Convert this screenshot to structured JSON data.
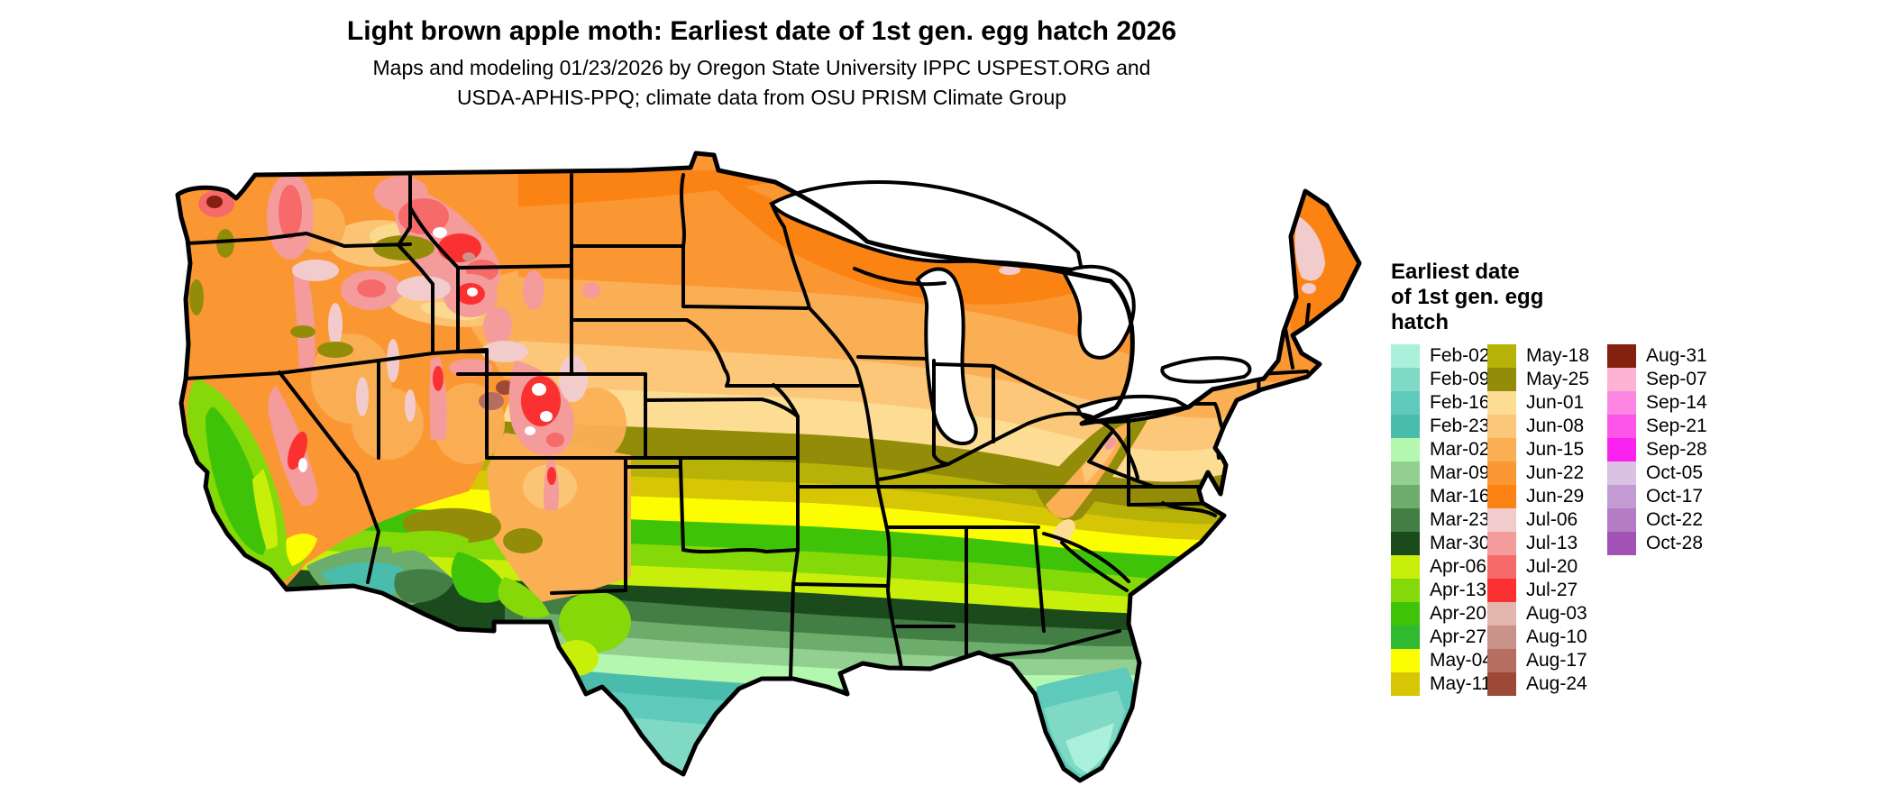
{
  "header": {
    "title": "Light brown apple moth: Earliest date of 1st gen. egg hatch 2026",
    "subtitle_line1": "Maps and modeling 01/23/2026 by Oregon State University IPPC USPEST.ORG and",
    "subtitle_line2": "USDA-APHIS-PPQ; climate data from OSU PRISM Climate Group"
  },
  "legend": {
    "title": "Earliest date\nof 1st gen. egg\nhatch",
    "columns": [
      [
        {
          "label": "Feb-02",
          "color": "#aaf0da"
        },
        {
          "label": "Feb-09",
          "color": "#7fd9c4"
        },
        {
          "label": "Feb-16",
          "color": "#5ecabb"
        },
        {
          "label": "Feb-23",
          "color": "#49bcab"
        },
        {
          "label": "Mar-02",
          "color": "#b4f7ae"
        },
        {
          "label": "Mar-09",
          "color": "#92cf91"
        },
        {
          "label": "Mar-16",
          "color": "#6dad6c"
        },
        {
          "label": "Mar-23",
          "color": "#437f45"
        },
        {
          "label": "Mar-30",
          "color": "#1b4a1d"
        },
        {
          "label": "Apr-06",
          "color": "#c8ef0a"
        },
        {
          "label": "Apr-13",
          "color": "#85d909"
        },
        {
          "label": "Apr-20",
          "color": "#3fc309"
        },
        {
          "label": "Apr-27",
          "color": "#2fba2f"
        },
        {
          "label": "May-04",
          "color": "#fdfd01"
        },
        {
          "label": "May-11",
          "color": "#d6c605"
        }
      ],
      [
        {
          "label": "May-18",
          "color": "#b7b207"
        },
        {
          "label": "May-25",
          "color": "#928c09"
        },
        {
          "label": "Jun-01",
          "color": "#fcdd93"
        },
        {
          "label": "Jun-08",
          "color": "#fcc778"
        },
        {
          "label": "Jun-15",
          "color": "#fbaf55"
        },
        {
          "label": "Jun-22",
          "color": "#fb9733"
        },
        {
          "label": "Jun-29",
          "color": "#fb8314"
        },
        {
          "label": "Jul-06",
          "color": "#f2cccc"
        },
        {
          "label": "Jul-13",
          "color": "#f49b9b"
        },
        {
          "label": "Jul-20",
          "color": "#f66a6a"
        },
        {
          "label": "Jul-27",
          "color": "#fb3131"
        },
        {
          "label": "Aug-03",
          "color": "#e2b5ad"
        },
        {
          "label": "Aug-10",
          "color": "#c9938a"
        },
        {
          "label": "Aug-17",
          "color": "#b56e60"
        },
        {
          "label": "Aug-24",
          "color": "#9c4a37"
        }
      ],
      [
        {
          "label": "Aug-31",
          "color": "#84200e"
        },
        {
          "label": "Sep-07",
          "color": "#feb3d5"
        },
        {
          "label": "Sep-14",
          "color": "#fd86e2"
        },
        {
          "label": "Sep-21",
          "color": "#fd55e8"
        },
        {
          "label": "Sep-28",
          "color": "#fb22f1"
        },
        {
          "label": "Oct-05",
          "color": "#d9c2e4"
        },
        {
          "label": "Oct-17",
          "color": "#c49ad3"
        },
        {
          "label": "Oct-22",
          "color": "#b47cc5"
        },
        {
          "label": "Oct-28",
          "color": "#a251b5"
        }
      ]
    ]
  },
  "colors": {
    "feb02": "#aaf0da",
    "feb09": "#7fd9c4",
    "feb16": "#5ecabb",
    "feb23": "#49bcab",
    "mar02": "#b4f7ae",
    "mar09": "#92cf91",
    "mar16": "#6dad6c",
    "mar23": "#437f45",
    "mar30": "#1b4a1d",
    "apr06": "#c8ef0a",
    "apr13": "#85d909",
    "apr20": "#3fc309",
    "apr27": "#2fba2f",
    "may04": "#fdfd01",
    "may11": "#d6c605",
    "may18": "#b7b207",
    "may25": "#928c09",
    "jun01": "#fcdd93",
    "jun08": "#fcc778",
    "jun15": "#fbaf55",
    "jun22": "#fb9733",
    "jun29": "#fb8314",
    "jul06": "#f2cccc",
    "jul13": "#f49b9b",
    "jul20": "#f66a6a",
    "jul27": "#fb3131",
    "aug03": "#e2b5ad",
    "aug10": "#c9938a",
    "aug17": "#b56e60",
    "aug24": "#9c4a37",
    "aug31": "#84200e",
    "white_peaks": "#ffffff",
    "border": "#000000",
    "lakes": "#ffffff"
  },
  "map": {
    "region": "Conterminous United States",
    "kind": "raster phenology map with state borders"
  }
}
